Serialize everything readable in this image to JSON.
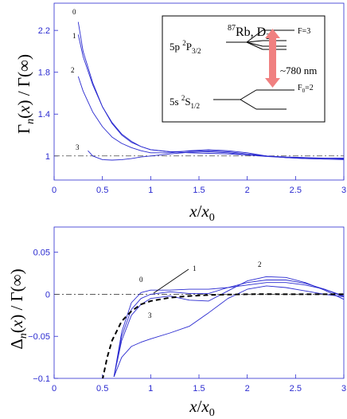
{
  "chart_data": [
    {
      "type": "line",
      "title": "",
      "xlabel": "x/x0",
      "ylabel": "Γn(x) / Γ(∞)",
      "xlim": [
        0,
        3
      ],
      "ylim": [
        0.77,
        2.46
      ],
      "xticks": [
        "0",
        "0.5",
        "1",
        "1.5",
        "2",
        "2.5",
        "3"
      ],
      "yticks": [
        "1",
        "1.4",
        "1.8",
        "2.2"
      ],
      "series": [
        {
          "name": "0",
          "x": [
            0.25,
            0.3,
            0.4,
            0.5,
            0.6,
            0.7,
            0.8,
            0.9,
            1.0,
            1.2,
            1.4,
            1.6,
            1.8,
            2.0,
            2.2,
            2.4,
            2.6,
            2.8,
            3.0
          ],
          "y": [
            2.28,
            2.0,
            1.7,
            1.47,
            1.31,
            1.2,
            1.13,
            1.09,
            1.06,
            1.04,
            1.03,
            1.025,
            1.02,
            1.01,
            1.0,
            0.99,
            0.985,
            0.98,
            0.975
          ]
        },
        {
          "name": "1",
          "x": [
            0.25,
            0.3,
            0.4,
            0.5,
            0.6,
            0.7,
            0.8,
            0.9,
            1.0,
            1.2,
            1.4,
            1.6,
            1.8,
            2.0,
            2.2,
            2.4,
            2.6,
            2.8,
            3.0
          ],
          "y": [
            2.16,
            1.95,
            1.68,
            1.47,
            1.32,
            1.21,
            1.14,
            1.09,
            1.06,
            1.04,
            1.045,
            1.05,
            1.04,
            1.02,
            1.0,
            0.985,
            0.975,
            0.97,
            0.965
          ]
        },
        {
          "name": "2",
          "x": [
            0.25,
            0.3,
            0.4,
            0.5,
            0.6,
            0.7,
            0.8,
            0.9,
            1.0,
            1.2,
            1.4,
            1.6,
            1.8,
            2.0,
            2.2,
            2.4,
            2.6,
            2.8,
            3.0
          ],
          "y": [
            1.76,
            1.62,
            1.42,
            1.28,
            1.18,
            1.12,
            1.08,
            1.05,
            1.03,
            1.03,
            1.05,
            1.06,
            1.05,
            1.03,
            1.0,
            0.985,
            0.975,
            0.97,
            0.97
          ]
        },
        {
          "name": "3",
          "x": [
            0.35,
            0.4,
            0.5,
            0.6,
            0.7,
            0.8,
            0.9,
            1.0,
            1.2,
            1.4,
            1.6,
            1.8,
            2.0,
            2.2,
            2.4,
            2.6,
            2.8,
            3.0
          ],
          "y": [
            1.05,
            1.0,
            0.965,
            0.96,
            0.965,
            0.975,
            0.99,
            1.0,
            1.02,
            1.035,
            1.04,
            1.03,
            1.01,
            0.995,
            0.985,
            0.98,
            0.98,
            0.98
          ]
        }
      ],
      "reference_line": {
        "y": 1,
        "style": "dash-dot"
      },
      "inset": {
        "title": "87Rb, D2",
        "upper_level": "5p 2P3/2",
        "lower_level": "5s 2S1/2",
        "upper_F": "F=3",
        "lower_F": "F0=2",
        "wavelength": "~780 nm"
      }
    },
    {
      "type": "line",
      "title": "",
      "xlabel": "x/x0",
      "ylabel": "Δn(x) / Γ(∞)",
      "xlim": [
        0,
        3
      ],
      "ylim": [
        -0.1,
        0.08
      ],
      "xticks": [
        "0",
        "0.5",
        "1",
        "1.5",
        "2",
        "2.5",
        "3"
      ],
      "yticks": [
        "-0.1",
        "-0.05",
        "0",
        "0.05"
      ],
      "series": [
        {
          "name": "0",
          "x": [
            0.62,
            0.7,
            0.8,
            0.9,
            1.0,
            1.2,
            1.4,
            1.6,
            1.8,
            2.0,
            2.2,
            2.4,
            2.6,
            2.8,
            3.0
          ],
          "y": [
            -0.098,
            -0.045,
            -0.01,
            0.002,
            0.005,
            0.005,
            0.006,
            0.006,
            0.008,
            0.011,
            0.014,
            0.014,
            0.011,
            0.006,
            -0.002
          ]
        },
        {
          "name": "1",
          "x": [
            0.62,
            0.7,
            0.8,
            0.9,
            1.0,
            1.2,
            1.4,
            1.6,
            1.8,
            2.0,
            2.2,
            2.4,
            2.6,
            2.8,
            3.0
          ],
          "y": [
            -0.098,
            -0.05,
            -0.018,
            -0.005,
            0.0,
            0.003,
            0.001,
            0.001,
            0.008,
            0.014,
            0.017,
            0.017,
            0.013,
            0.006,
            -0.003
          ]
        },
        {
          "name": "2",
          "x": [
            0.62,
            0.7,
            0.8,
            0.9,
            1.0,
            1.2,
            1.4,
            1.6,
            1.8,
            2.0,
            2.2,
            2.4,
            2.6,
            2.8,
            3.0
          ],
          "y": [
            -0.098,
            -0.055,
            -0.025,
            -0.012,
            -0.005,
            -0.002,
            -0.007,
            -0.008,
            0.004,
            0.016,
            0.021,
            0.02,
            0.014,
            0.005,
            -0.006
          ]
        },
        {
          "name": "3",
          "x": [
            0.62,
            0.7,
            0.8,
            0.9,
            1.0,
            1.2,
            1.4,
            1.6,
            1.8,
            2.0,
            2.2,
            2.4,
            2.6,
            2.8,
            3.0
          ],
          "y": [
            -0.098,
            -0.075,
            -0.062,
            -0.057,
            -0.053,
            -0.046,
            -0.038,
            -0.022,
            -0.005,
            0.006,
            0.01,
            0.008,
            0.004,
            0.0,
            -0.003
          ]
        },
        {
          "name": "",
          "style": "dashed-black",
          "x": [
            0.5,
            0.55,
            0.6,
            0.7,
            0.8,
            0.9,
            1.0,
            1.2,
            1.4,
            1.6,
            1.8,
            2.0,
            2.2,
            2.4,
            2.6,
            2.8,
            3.0
          ],
          "y": [
            -0.102,
            -0.075,
            -0.055,
            -0.032,
            -0.02,
            -0.012,
            -0.008,
            -0.004,
            -0.002,
            -0.0008,
            -0.0003,
            0.0,
            0.0002,
            0.0,
            0.0,
            0.0,
            0.0
          ]
        }
      ],
      "reference_line": {
        "y": 0,
        "style": "dash-dot"
      }
    }
  ],
  "colors": {
    "curve": "#2a2ad0",
    "axis": "#2a2ad0",
    "text": "#000000",
    "arrow": "#f08080"
  }
}
